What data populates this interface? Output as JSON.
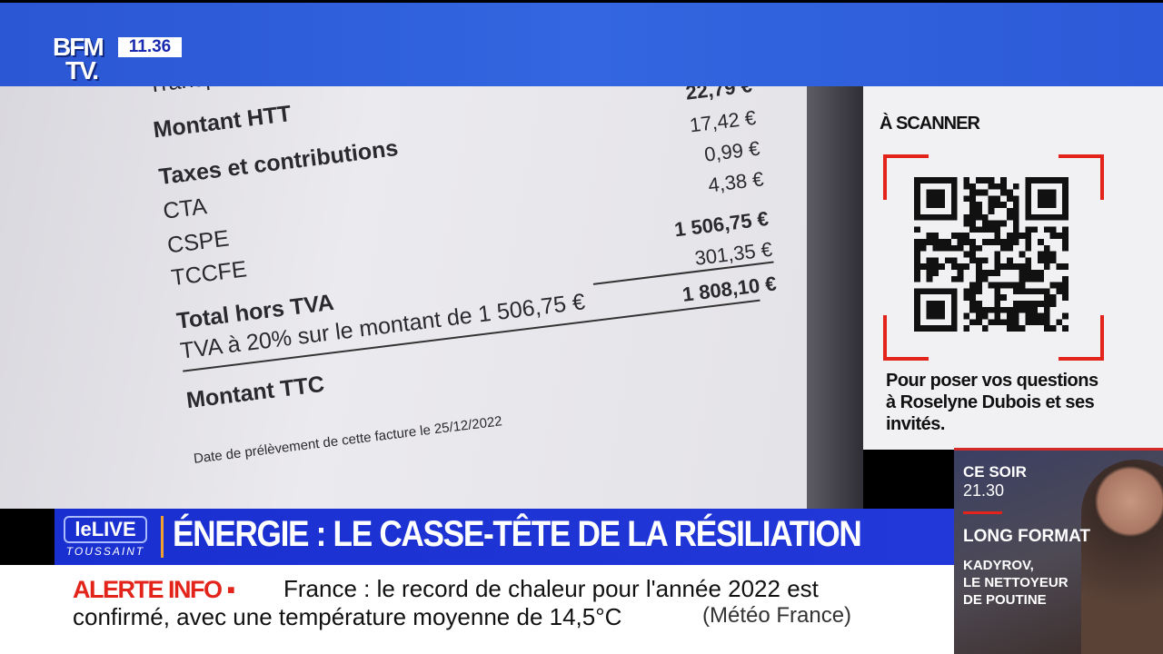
{
  "channel": {
    "logo_top": "BFM",
    "logo_bottom": "TV.",
    "time": "11.36"
  },
  "invoice": {
    "partial_top": "Transport",
    "montant_htt": "Montant HTT",
    "taxes": "Taxes et contributions",
    "cta": "CTA",
    "cspe": "CSPE",
    "tccfe": "TCCFE",
    "total_hors_tva": "Total hors TVA",
    "tva_line": "TVA à 20% sur le montant de 1 506,75 €",
    "montant_ttc": "Montant TTC",
    "date_line": "Date de prélèvement de cette facture le 25/12/2022",
    "amounts": [
      "22,79 €",
      "17,42 €",
      "0,99 €",
      "4,38 €",
      "1 506,75 €",
      "301,35 €",
      "1 808,10 €"
    ]
  },
  "qr_panel": {
    "title": "À SCANNER",
    "text": "Pour poser vos questions à Roselyne Dubois et ses invités."
  },
  "promo": {
    "when": "CE SOIR",
    "time": "21.30",
    "format": "LONG FORMAT",
    "title_1": "KADYROV,",
    "title_2": "LE NETTOYEUR",
    "title_3": "DE POUTINE"
  },
  "banner": {
    "live_label": "leLIVE",
    "live_sub": "TOUSSAINT",
    "headline": "ÉNERGIE : LE CASSE-TÊTE DE LA RÉSILIATION"
  },
  "ticker": {
    "label": "ALERTE INFO ▪",
    "line1": "France : le record de chaleur pour l'année 2022 est",
    "line2": "confirmé, avec une température moyenne de 14,5°C",
    "source": "(Météo France)"
  },
  "colors": {
    "brand_blue": "#2b56d4",
    "banner_blue": "#1a2fd0",
    "alert_red": "#e3241b"
  }
}
